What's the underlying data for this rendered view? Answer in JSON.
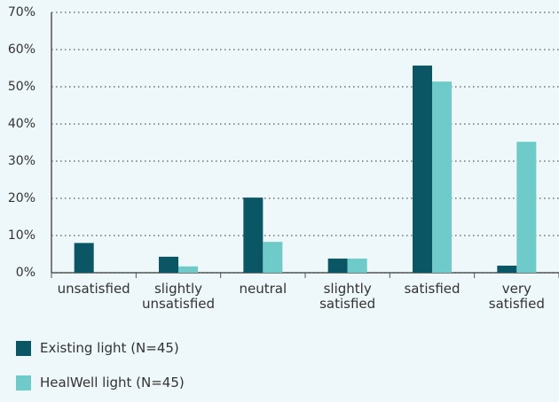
{
  "chart_data": {
    "type": "bar",
    "categories": [
      "unsatisfied",
      "slightly unsatisfied",
      "neutral",
      "slightly satisfied",
      "satisfied",
      "very satisfied"
    ],
    "series": [
      {
        "name": "Existing light (N=45)",
        "color": "#0b5664",
        "values": [
          8,
          4.3,
          20.2,
          3.8,
          55.7,
          1.9
        ]
      },
      {
        "name": "HealWell light (N=45)",
        "color": "#6ecbc9",
        "values": [
          0,
          1.7,
          8.3,
          3.8,
          51.4,
          35.2
        ]
      }
    ],
    "ylim": [
      0,
      70
    ],
    "yticks": [
      {
        "value": 0,
        "label": "0%"
      },
      {
        "value": 10,
        "label": "10%"
      },
      {
        "value": 20,
        "label": "20%"
      },
      {
        "value": 30,
        "label": "30%"
      },
      {
        "value": 40,
        "label": "40%"
      },
      {
        "value": 50,
        "label": "50%"
      },
      {
        "value": 60,
        "label": "60%"
      },
      {
        "value": 70,
        "label": "70%"
      }
    ],
    "grid": true
  }
}
